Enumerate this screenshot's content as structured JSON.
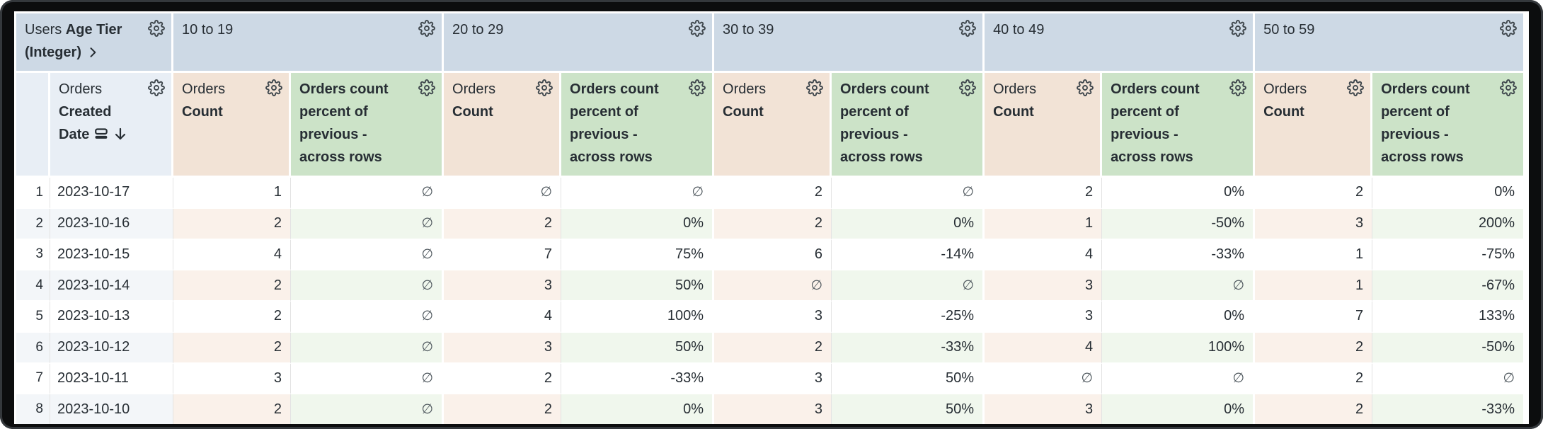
{
  "app": {
    "view": "pivot-data-table"
  },
  "colors": {
    "pivot_header_bg": "#cdd9e5",
    "dimension_header_bg": "#e8eef5",
    "count_header_bg": "#f2e3d6",
    "percent_header_bg": "#cce3c8",
    "alt_row_dim_bg": "#f3f6f9",
    "alt_row_count_bg": "#faf1ea",
    "alt_row_percent_bg": "#f0f7ed",
    "text": "#272e34",
    "null_text": "#4d565c",
    "frame": "#0c0d0e"
  },
  "table": {
    "corner": {
      "prefix": "Users",
      "field": "Age Tier (Integer)"
    },
    "row_field": {
      "prefix": "Orders",
      "field": "Created Date"
    },
    "measures": {
      "count_prefix": "Orders",
      "count_field": "Count",
      "percent_field": "Orders count percent of previous - across rows"
    },
    "pivots": [
      "10 to 19",
      "20 to 29",
      "30 to 39",
      "40 to 49",
      "50 to 59"
    ],
    "null_symbol": "∅",
    "sort": {
      "column": "Orders Created Date",
      "direction": "descending"
    },
    "rows": [
      {
        "index": "1",
        "date": "2023-10-17",
        "cells": [
          [
            "1",
            "∅"
          ],
          [
            "∅",
            "∅"
          ],
          [
            "2",
            "∅"
          ],
          [
            "2",
            "0%"
          ],
          [
            "2",
            "0%"
          ]
        ]
      },
      {
        "index": "2",
        "date": "2023-10-16",
        "cells": [
          [
            "2",
            "∅"
          ],
          [
            "2",
            "0%"
          ],
          [
            "2",
            "0%"
          ],
          [
            "1",
            "-50%"
          ],
          [
            "3",
            "200%"
          ]
        ]
      },
      {
        "index": "3",
        "date": "2023-10-15",
        "cells": [
          [
            "4",
            "∅"
          ],
          [
            "7",
            "75%"
          ],
          [
            "6",
            "-14%"
          ],
          [
            "4",
            "-33%"
          ],
          [
            "1",
            "-75%"
          ]
        ]
      },
      {
        "index": "4",
        "date": "2023-10-14",
        "cells": [
          [
            "2",
            "∅"
          ],
          [
            "3",
            "50%"
          ],
          [
            "∅",
            "∅"
          ],
          [
            "3",
            "∅"
          ],
          [
            "1",
            "-67%"
          ]
        ]
      },
      {
        "index": "5",
        "date": "2023-10-13",
        "cells": [
          [
            "2",
            "∅"
          ],
          [
            "4",
            "100%"
          ],
          [
            "3",
            "-25%"
          ],
          [
            "3",
            "0%"
          ],
          [
            "7",
            "133%"
          ]
        ]
      },
      {
        "index": "6",
        "date": "2023-10-12",
        "cells": [
          [
            "2",
            "∅"
          ],
          [
            "3",
            "50%"
          ],
          [
            "2",
            "-33%"
          ],
          [
            "4",
            "100%"
          ],
          [
            "2",
            "-50%"
          ]
        ]
      },
      {
        "index": "7",
        "date": "2023-10-11",
        "cells": [
          [
            "3",
            "∅"
          ],
          [
            "2",
            "-33%"
          ],
          [
            "3",
            "50%"
          ],
          [
            "∅",
            "∅"
          ],
          [
            "2",
            "∅"
          ]
        ]
      },
      {
        "index": "8",
        "date": "2023-10-10",
        "cells": [
          [
            "2",
            "∅"
          ],
          [
            "2",
            "0%"
          ],
          [
            "3",
            "50%"
          ],
          [
            "3",
            "0%"
          ],
          [
            "2",
            "-33%"
          ]
        ]
      }
    ]
  }
}
